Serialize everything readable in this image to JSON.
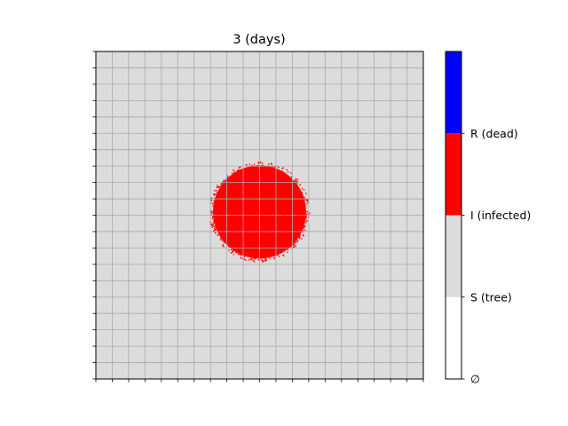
{
  "chart_data": {
    "type": "heatmap",
    "title": "3 (days)",
    "xlabel": "",
    "ylabel": "",
    "grid": true,
    "grid_divisions": 20,
    "state_fill_color": "#dcdcdc",
    "grid_color": "#a9a9a9",
    "infected_region": {
      "state": "I (infected)",
      "shape": "disc",
      "center": [
        0.5,
        0.49
      ],
      "radius": 0.145,
      "color": "#ff0000"
    },
    "colorbar": {
      "position": "right",
      "categories": [
        {
          "label": "∅",
          "color": "#ffffff"
        },
        {
          "label": "S (tree)",
          "color": "#dcdcdc"
        },
        {
          "label": "I (infected)",
          "color": "#ff0000"
        },
        {
          "label": "R (dead)",
          "color": "#0000ff"
        }
      ]
    }
  }
}
